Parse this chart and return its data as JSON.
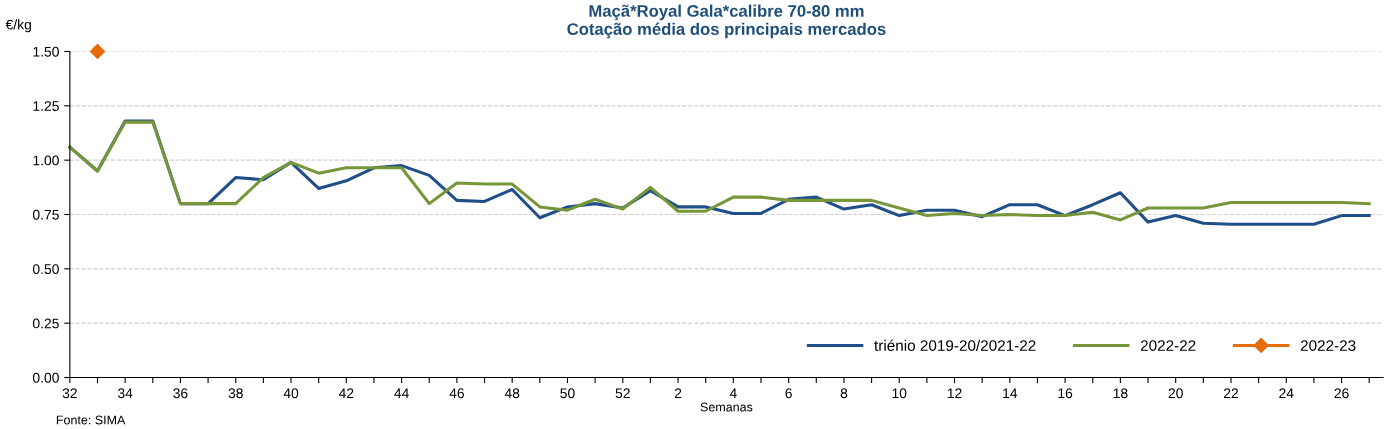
{
  "chart_data": {
    "type": "line",
    "title": "Maçã*Royal Gala*calibre 70-80 mm\nCotação média dos principais mercados",
    "xlabel": "Semanas",
    "ylabel": "€/kg",
    "categories": [
      "32",
      null,
      "34",
      null,
      "36",
      null,
      "38",
      null,
      "40",
      null,
      "42",
      null,
      "44",
      null,
      "46",
      null,
      "48",
      null,
      "50",
      null,
      "52",
      null,
      "2",
      null,
      "4",
      null,
      "6",
      null,
      "8",
      null,
      "10",
      null,
      "12",
      null,
      "14",
      null,
      "16",
      null,
      "18",
      null,
      "20",
      null,
      "22",
      null,
      "24",
      null,
      "26",
      null
    ],
    "series": [
      {
        "name": "triénio 2019-20/2021-22",
        "color": "#1f4e89",
        "marker": "none",
        "values": [
          1.06,
          0.95,
          1.18,
          1.18,
          0.8,
          0.8,
          0.92,
          0.91,
          0.99,
          0.87,
          0.905,
          0.965,
          0.975,
          0.93,
          0.815,
          0.81,
          0.865,
          0.735,
          0.785,
          0.8,
          0.78,
          0.86,
          0.785,
          0.785,
          0.755,
          0.755,
          0.82,
          0.83,
          0.775,
          0.795,
          0.745,
          0.77,
          0.77,
          0.74,
          0.795,
          0.795,
          0.745,
          0.795,
          0.85,
          0.715,
          0.745,
          0.71,
          0.705,
          0.705,
          0.705,
          0.705,
          0.745,
          0.745
        ]
      },
      {
        "name": "2022-22",
        "color": "#77963a",
        "marker": "none",
        "values": [
          1.06,
          0.95,
          1.175,
          1.175,
          0.8,
          0.8,
          0.8,
          0.92,
          0.99,
          0.94,
          0.965,
          0.965,
          0.965,
          0.8,
          0.895,
          0.89,
          0.89,
          0.785,
          0.77,
          0.82,
          0.775,
          0.875,
          0.765,
          0.765,
          0.83,
          0.83,
          0.815,
          0.815,
          0.815,
          0.815,
          0.78,
          0.745,
          0.755,
          0.745,
          0.75,
          0.745,
          0.745,
          0.76,
          0.725,
          0.78,
          0.78,
          0.78,
          0.805,
          0.805,
          0.805,
          0.805,
          0.805,
          0.8
        ]
      },
      {
        "name": "2022-23",
        "color": "#e46c0a",
        "marker": "diamond",
        "values": [
          null,
          1.5,
          null,
          null,
          null,
          null,
          null,
          null,
          null,
          null,
          null,
          null,
          null,
          null,
          null,
          null,
          null,
          null,
          null,
          null,
          null,
          null,
          null,
          null,
          null,
          null,
          null,
          null,
          null,
          null,
          null,
          null,
          null,
          null,
          null,
          null,
          null,
          null,
          null,
          null,
          null,
          null,
          null,
          null,
          null,
          null,
          null,
          null
        ]
      }
    ],
    "ylim": [
      0,
      1.5
    ],
    "yticks": [
      {
        "value": 0,
        "label": "0.00"
      },
      {
        "value": 0.25,
        "label": "0.25"
      },
      {
        "value": 0.5,
        "label": "0.50"
      },
      {
        "value": 0.75,
        "label": "0.75"
      },
      {
        "value": 1.0,
        "label": "1.00"
      },
      {
        "value": 1.25,
        "label": "1.25"
      },
      {
        "value": 1.5,
        "label": "1.50"
      }
    ],
    "grid": "y",
    "legend": "bottom right",
    "annotations": [
      "Fonte: SIMA"
    ]
  }
}
